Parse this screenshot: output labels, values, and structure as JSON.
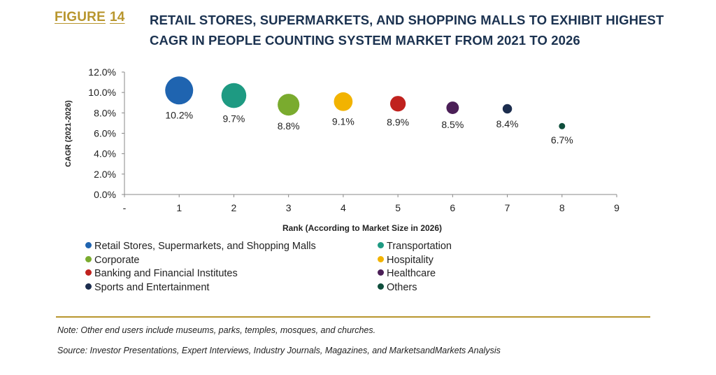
{
  "figure": {
    "label": "FIGURE",
    "number": "14",
    "title": "RETAIL STORES, SUPERMARKETS, AND SHOPPING MALLS TO EXHIBIT HIGHEST CAGR IN PEOPLE COUNTING SYSTEM MARKET FROM 2021 TO 2026"
  },
  "chart_data": {
    "type": "bubble",
    "xlabel": "Rank (According to Market Size in 2026)",
    "ylabel": "CAGR (2021-2026)",
    "ylim": [
      0,
      12
    ],
    "y_ticks": [
      "0.0%",
      "2.0%",
      "4.0%",
      "6.0%",
      "8.0%",
      "10.0%",
      "12.0%"
    ],
    "x_ticks": [
      "-",
      "1",
      "2",
      "3",
      "4",
      "5",
      "6",
      "7",
      "8",
      "9"
    ],
    "xlim": [
      0,
      9
    ],
    "grid": false,
    "legend_position": "bottom",
    "series": [
      {
        "name": "Retail Stores, Supermarkets, and Shopping Malls",
        "x": 1,
        "y": 10.2,
        "label": "10.2%",
        "color": "#1f64b0"
      },
      {
        "name": "Transportation",
        "x": 2,
        "y": 9.7,
        "label": "9.7%",
        "color": "#1e9a82"
      },
      {
        "name": "Corporate",
        "x": 3,
        "y": 8.8,
        "label": "8.8%",
        "color": "#7aab2e"
      },
      {
        "name": "Hospitality",
        "x": 4,
        "y": 9.1,
        "label": "9.1%",
        "color": "#f2b300"
      },
      {
        "name": "Banking and Financial Institutes",
        "x": 5,
        "y": 8.9,
        "label": "8.9%",
        "color": "#c0221e"
      },
      {
        "name": "Healthcare",
        "x": 6,
        "y": 8.5,
        "label": "8.5%",
        "color": "#4b1f57"
      },
      {
        "name": "Sports and Entertainment",
        "x": 7,
        "y": 8.4,
        "label": "8.4%",
        "color": "#1c2d4e"
      },
      {
        "name": "Others",
        "x": 8,
        "y": 6.7,
        "label": "6.7%",
        "color": "#0f4e3c"
      }
    ]
  },
  "footer": {
    "note": "Note: Other end users include museums, parks, temples, mosques, and churches.",
    "source": "Source: Investor Presentations, Expert Interviews, Industry Journals, Magazines, and MarketsandMarkets Analysis"
  }
}
